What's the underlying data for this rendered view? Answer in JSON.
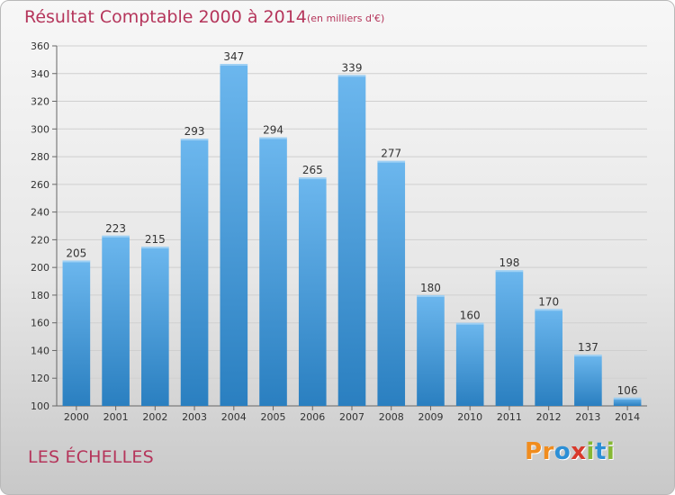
{
  "header": {
    "title": "Résultat Comptable 2000 à 2014",
    "subtitle": "(en milliers d'€)"
  },
  "footer": {
    "town": "LES ÉCHELLES",
    "logo_text": "Proxiti"
  },
  "colors": {
    "bar_top": "#6cb7ee",
    "bar_bottom": "#2a7fc0",
    "title": "#b5355b",
    "grid": "#cfcfcf",
    "logo": [
      "#f08c1e",
      "#f08c1e",
      "#2c8fd6",
      "#d8392b",
      "#86b833",
      "#2c8fd6",
      "#86b833"
    ]
  },
  "chart_data": {
    "type": "bar",
    "title": "Résultat Comptable 2000 à 2014",
    "unit": "(en milliers d'€)",
    "categories": [
      "2000",
      "2001",
      "2002",
      "2003",
      "2004",
      "2005",
      "2006",
      "2007",
      "2008",
      "2009",
      "2010",
      "2011",
      "2012",
      "2013",
      "2014"
    ],
    "values": [
      205,
      223,
      215,
      293,
      347,
      294,
      265,
      339,
      277,
      180,
      160,
      198,
      170,
      137,
      106
    ],
    "ylim": [
      100,
      360
    ],
    "yticks": [
      100,
      120,
      140,
      160,
      180,
      200,
      220,
      240,
      260,
      280,
      300,
      320,
      340,
      360
    ],
    "xlabel": "",
    "ylabel": "",
    "grid": true,
    "legend": "none"
  }
}
